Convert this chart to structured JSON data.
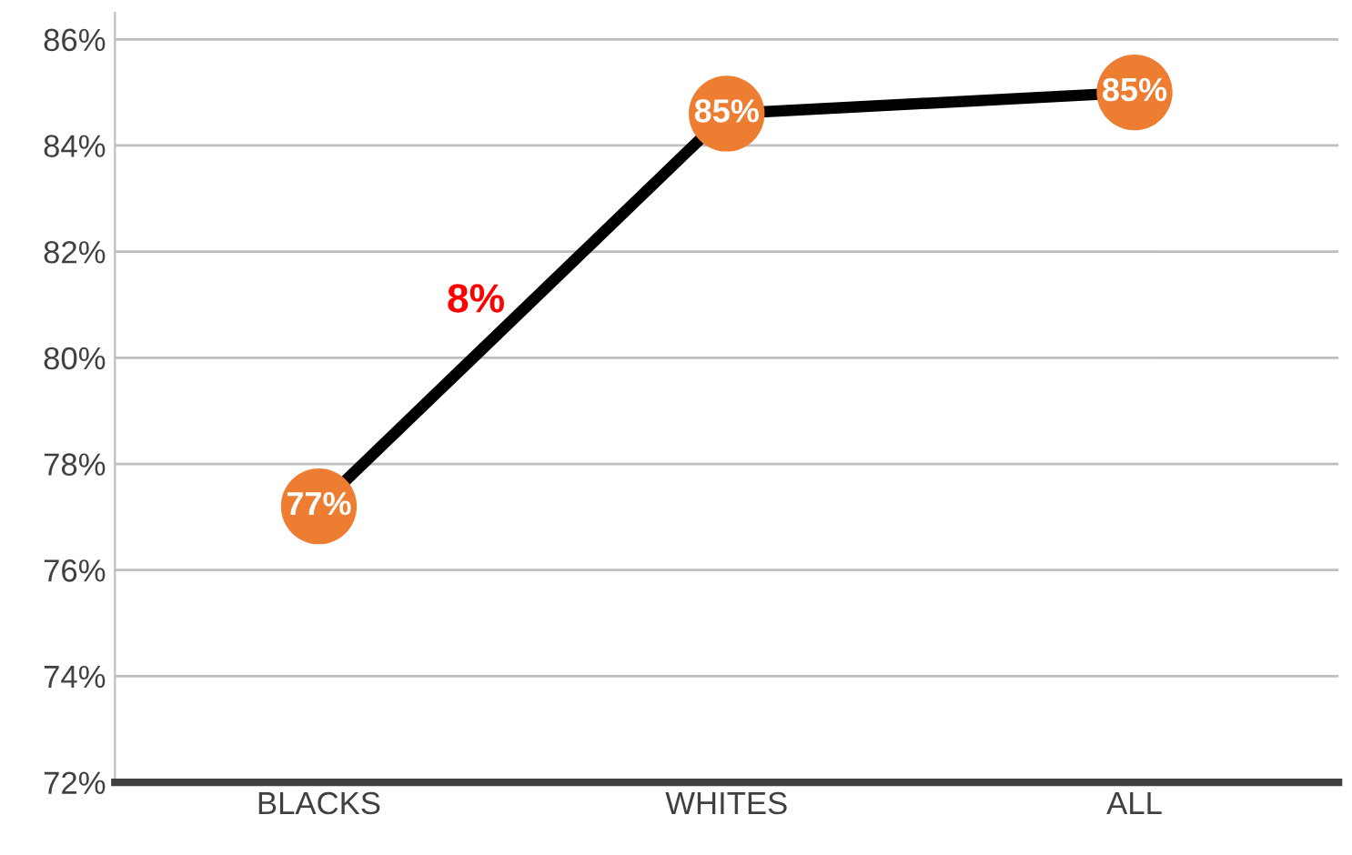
{
  "chart_data": {
    "type": "line",
    "categories": [
      "BLACKS",
      "WHITES",
      "ALL"
    ],
    "series": [
      {
        "color": "#000000",
        "values": [
          77.2,
          84.6,
          85.0
        ],
        "value_labels": [
          "77%",
          "85%",
          "85%"
        ]
      }
    ],
    "marker": "circle",
    "ylim": [
      72,
      86.5
    ],
    "yticks": [
      {
        "value": 72,
        "label": "72%"
      },
      {
        "value": 74,
        "label": "74%"
      },
      {
        "value": 76,
        "label": "76%"
      },
      {
        "value": 78,
        "label": "78%"
      },
      {
        "value": 80,
        "label": "80%"
      },
      {
        "value": 82,
        "label": "82%"
      },
      {
        "value": 84,
        "label": "84%"
      },
      {
        "value": 86,
        "label": "86%"
      }
    ],
    "grid": "y",
    "legend": false,
    "annotations": [
      "8%"
    ]
  }
}
